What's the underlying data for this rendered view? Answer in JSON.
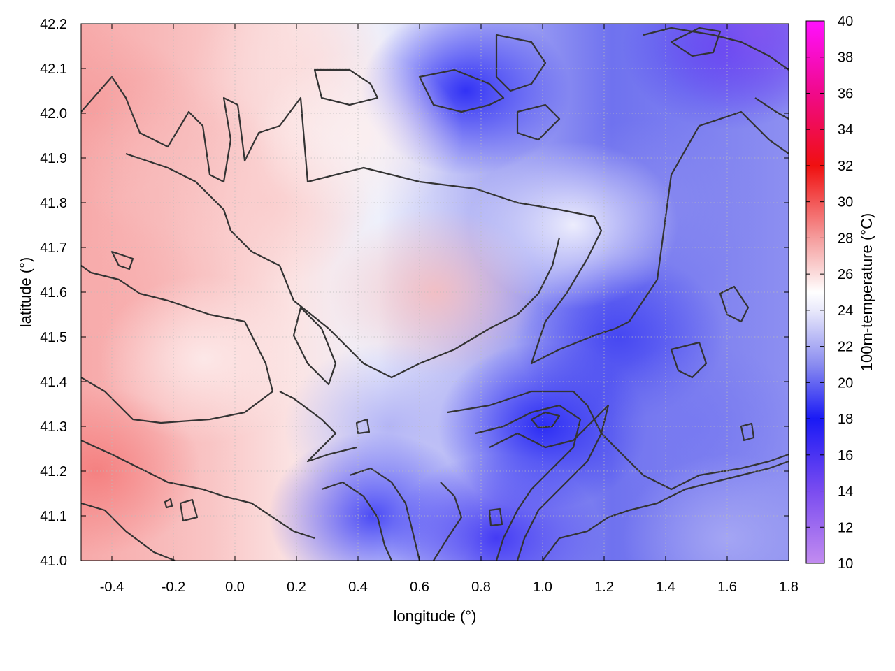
{
  "chart_data": {
    "type": "heatmap",
    "title": "",
    "xlabel": "longitude (°)",
    "ylabel": "latitude (°)",
    "colorbar_label": "100m-temperature (°C)",
    "xlim": [
      -0.5,
      1.8
    ],
    "ylim": [
      41.0,
      42.2
    ],
    "x_ticks": [
      "-0.4",
      "-0.2",
      "0.0",
      "0.2",
      "0.4",
      "0.6",
      "0.8",
      "1.0",
      "1.2",
      "1.4",
      "1.6",
      "1.8"
    ],
    "y_ticks": [
      "41.0",
      "41.1",
      "41.2",
      "41.3",
      "41.4",
      "41.5",
      "41.6",
      "41.7",
      "41.8",
      "41.9",
      "42.0",
      "42.1",
      "42.2"
    ],
    "colorbar_range": [
      10,
      40
    ],
    "colorbar_ticks": [
      "10",
      "12",
      "14",
      "16",
      "18",
      "20",
      "22",
      "24",
      "26",
      "28",
      "30",
      "32",
      "34",
      "36",
      "38",
      "40"
    ],
    "colormap": [
      {
        "value": 10,
        "color": "#c28cf0"
      },
      {
        "value": 14,
        "color": "#7a4cf0"
      },
      {
        "value": 18,
        "color": "#1a1af5"
      },
      {
        "value": 21,
        "color": "#8a8cf0"
      },
      {
        "value": 24,
        "color": "#e9e9fb"
      },
      {
        "value": 25,
        "color": "#ffffff"
      },
      {
        "value": 26,
        "color": "#fbdcdc"
      },
      {
        "value": 28,
        "color": "#f59c9c"
      },
      {
        "value": 32,
        "color": "#f01010"
      },
      {
        "value": 36,
        "color": "#f00a8a"
      },
      {
        "value": 40,
        "color": "#ff10ff"
      }
    ],
    "grid": true,
    "grid_style": "dotted",
    "contour_color": "#333333",
    "field_approx": [
      {
        "lon": -0.45,
        "lat": 41.2,
        "temp": 29.0
      },
      {
        "lon": -0.45,
        "lat": 41.6,
        "temp": 27.5
      },
      {
        "lon": -0.45,
        "lat": 42.0,
        "temp": 28.0
      },
      {
        "lon": -0.2,
        "lat": 41.9,
        "temp": 27.0
      },
      {
        "lon": -0.1,
        "lat": 41.45,
        "temp": 25.5
      },
      {
        "lon": 0.1,
        "lat": 41.8,
        "temp": 26.5
      },
      {
        "lon": 0.2,
        "lat": 42.1,
        "temp": 26.0
      },
      {
        "lon": 0.65,
        "lat": 41.6,
        "temp": 27.0
      },
      {
        "lon": 0.5,
        "lat": 41.3,
        "temp": 22.0
      },
      {
        "lon": 0.45,
        "lat": 41.1,
        "temp": 18.5
      },
      {
        "lon": 0.85,
        "lat": 41.05,
        "temp": 17.0
      },
      {
        "lon": 1.0,
        "lat": 41.3,
        "temp": 18.0
      },
      {
        "lon": 1.25,
        "lat": 41.5,
        "temp": 19.0
      },
      {
        "lon": 1.5,
        "lat": 41.3,
        "temp": 20.5
      },
      {
        "lon": 1.6,
        "lat": 41.05,
        "temp": 22.0
      },
      {
        "lon": 0.75,
        "lat": 42.05,
        "temp": 18.0
      },
      {
        "lon": 1.6,
        "lat": 42.15,
        "temp": 16.0
      },
      {
        "lon": 1.7,
        "lat": 42.18,
        "temp": 13.5
      },
      {
        "lon": 1.35,
        "lat": 41.8,
        "temp": 21.0
      },
      {
        "lon": 1.1,
        "lat": 41.75,
        "temp": 25.0
      },
      {
        "lon": 0.4,
        "lat": 41.95,
        "temp": 25.5
      }
    ]
  }
}
